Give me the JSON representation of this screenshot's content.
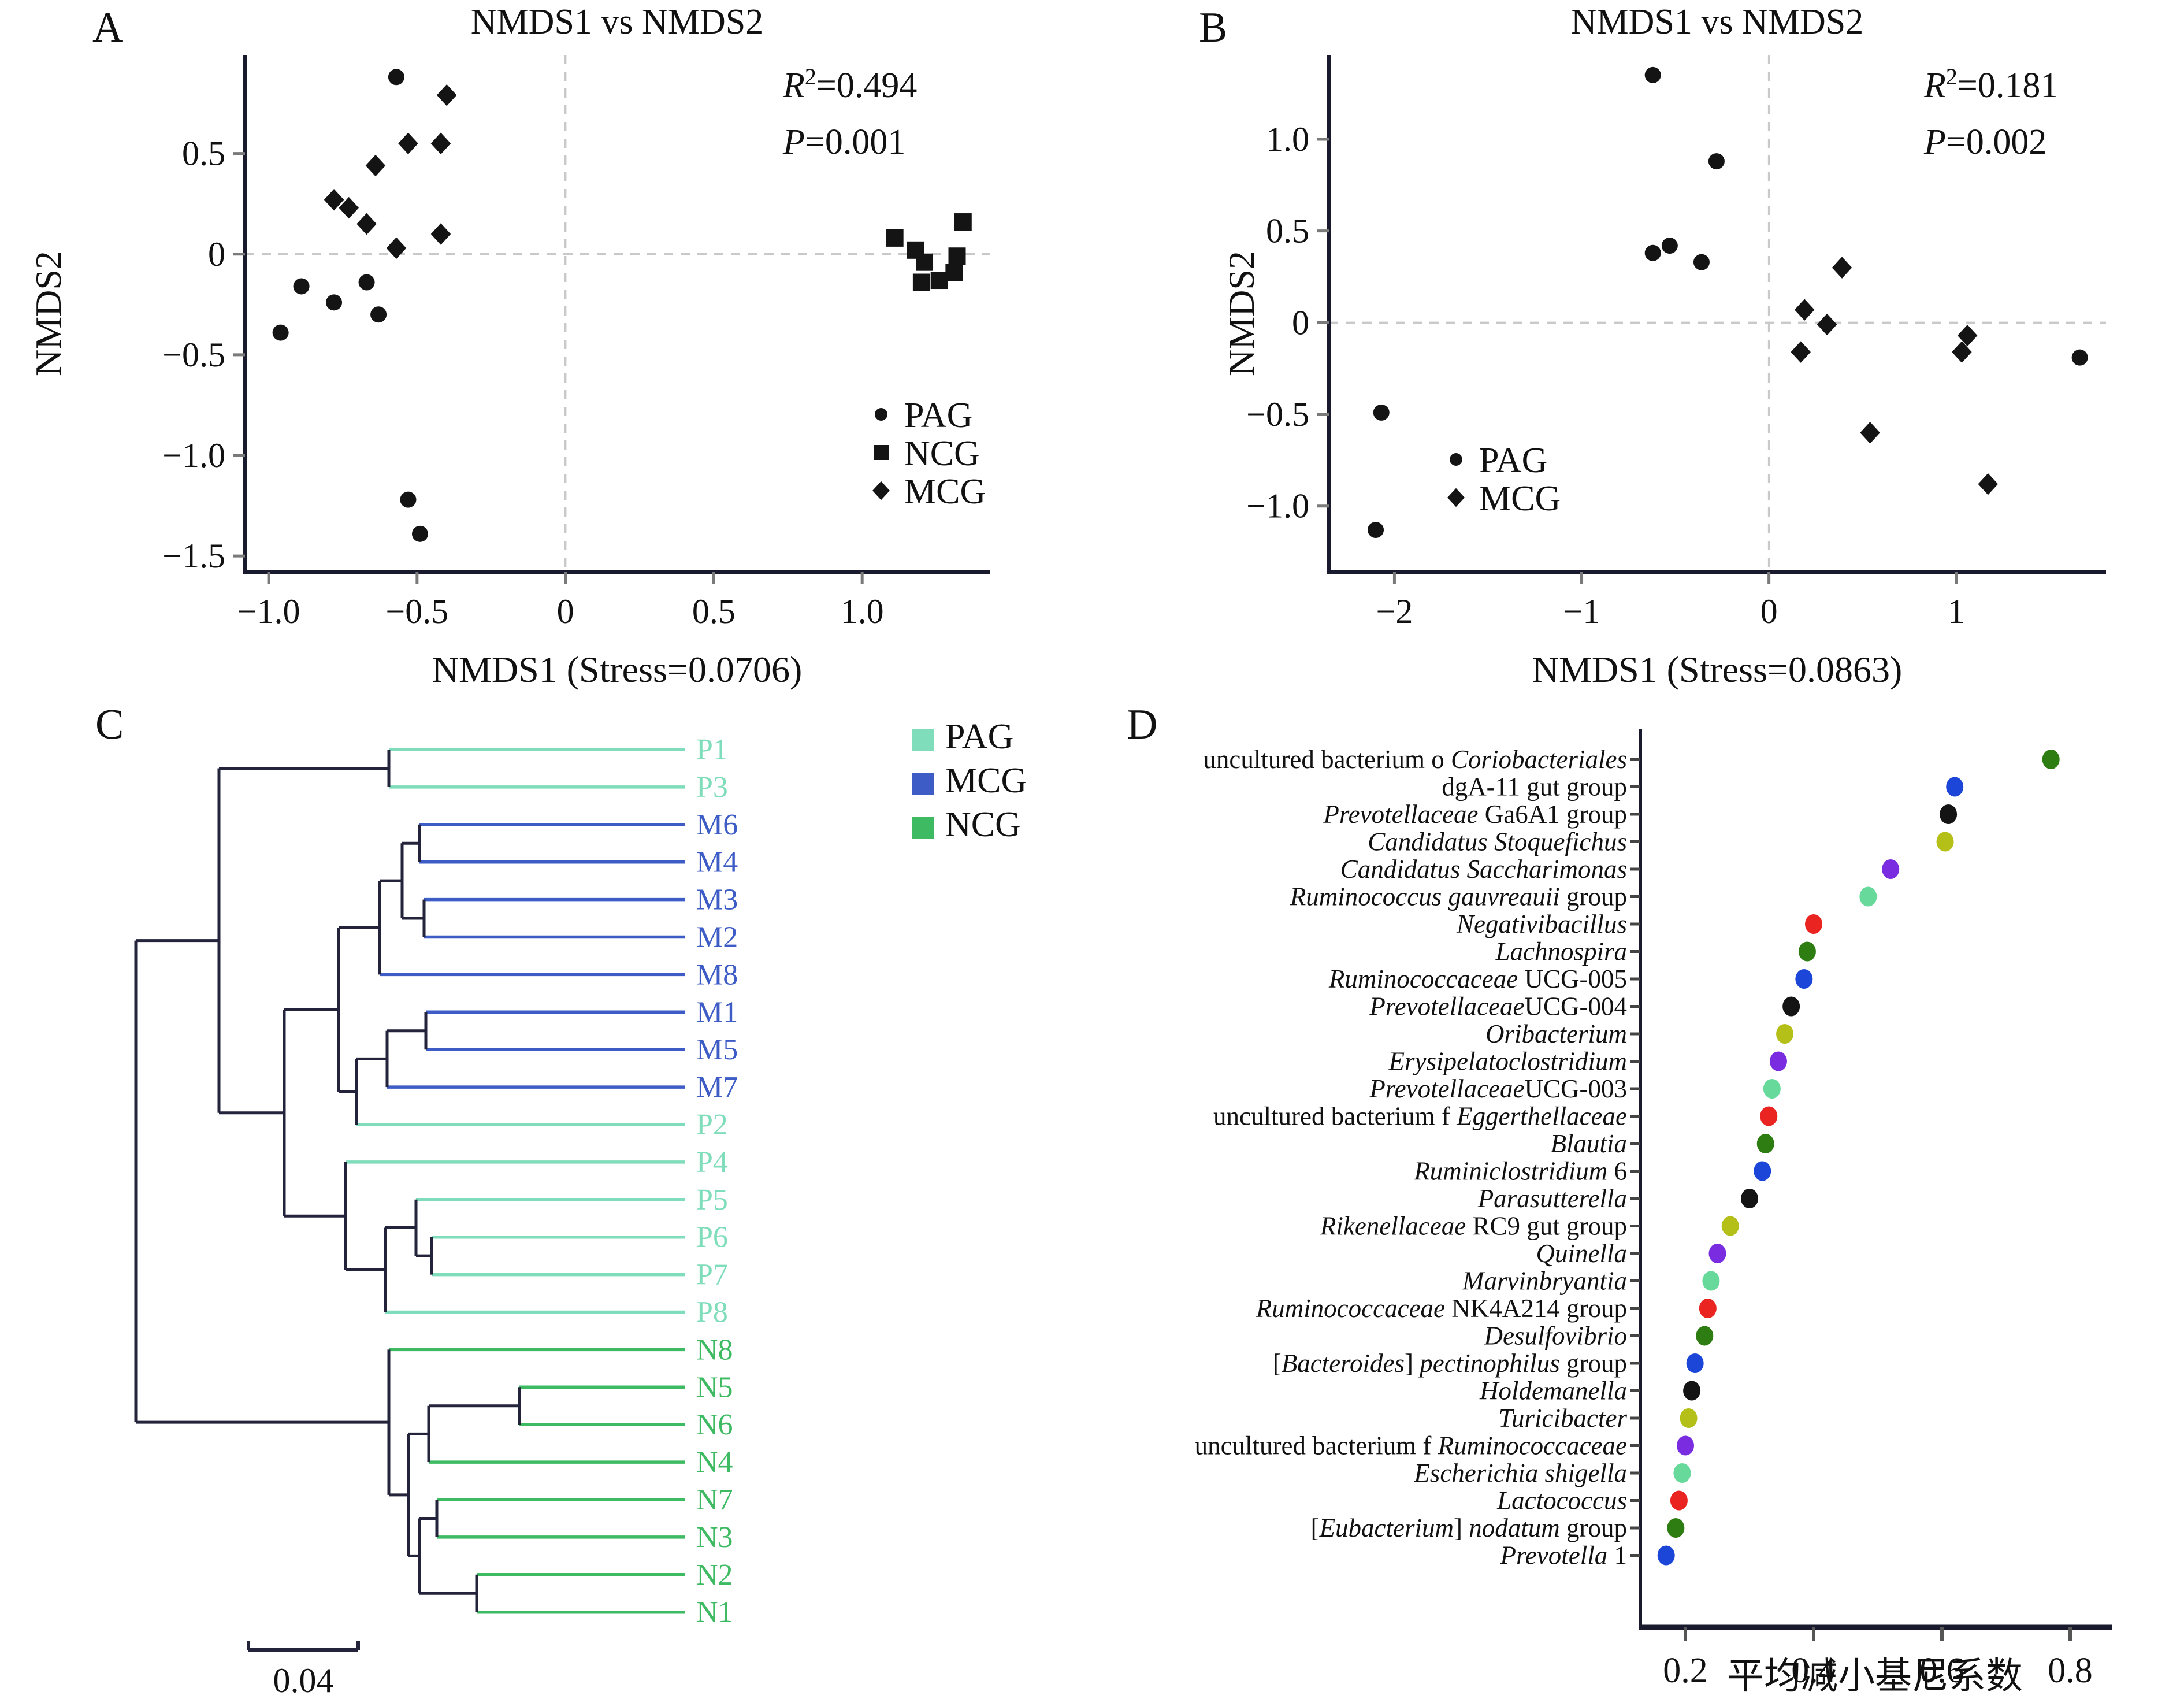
{
  "figure": {
    "background": "#ffffff",
    "panel_letters": {
      "a": "A",
      "b": "B",
      "c": "C",
      "d": "D"
    }
  },
  "colors": {
    "axis": "#1a1a2e",
    "grid_dash": "#c9c9c9",
    "point_black": "#141414",
    "link": "#23233c",
    "pag": "#80ddbb",
    "mcg": "#3d5cc5",
    "ncg": "#3eba63",
    "palette7": [
      "#2e7d12",
      "#1c46d8",
      "#141414",
      "#b4bf17",
      "#7a2ce0",
      "#67d99b",
      "#e92421"
    ]
  },
  "chart_data": [
    {
      "id": "A",
      "type": "scatter",
      "title": "NMDS1 vs NMDS2",
      "xlabel": "NMDS1 (Stress=0.0706)",
      "ylabel": "NMDS2",
      "xlim": [
        -1.08,
        1.43
      ],
      "ylim": [
        -1.58,
        0.99
      ],
      "xticks": [
        -1.0,
        -0.5,
        0,
        0.5,
        1.0
      ],
      "xtick_labels": [
        "−1.0",
        "−0.5",
        "0",
        "0.5",
        "1.0"
      ],
      "yticks": [
        0.5,
        0,
        -0.5,
        -1.0,
        -1.5
      ],
      "ytick_labels": [
        "0.5",
        "0",
        "−0.5",
        "−1.0",
        "−1.5"
      ],
      "grid_zero": true,
      "stats": {
        "r_label": "R",
        "r_sup": "2",
        "r_eq": "=0.494",
        "p_label": "P",
        "p_eq": "=0.001"
      },
      "legend": [
        {
          "label": "PAG",
          "marker": "circle"
        },
        {
          "label": "NCG",
          "marker": "square"
        },
        {
          "label": "MCG",
          "marker": "diamond"
        }
      ],
      "series": [
        {
          "name": "PAG",
          "marker": "circle",
          "points": [
            [
              -0.57,
              0.88
            ],
            [
              -0.89,
              -0.16
            ],
            [
              -0.78,
              -0.24
            ],
            [
              -0.67,
              -0.14
            ],
            [
              -0.63,
              -0.3
            ],
            [
              -0.96,
              -0.39
            ],
            [
              -0.53,
              -1.22
            ],
            [
              -0.49,
              -1.39
            ]
          ]
        },
        {
          "name": "NCG",
          "marker": "square",
          "points": [
            [
              1.11,
              0.08
            ],
            [
              1.18,
              0.02
            ],
            [
              1.21,
              -0.04
            ],
            [
              1.2,
              -0.14
            ],
            [
              1.26,
              -0.13
            ],
            [
              1.31,
              -0.09
            ],
            [
              1.32,
              -0.01
            ],
            [
              1.34,
              0.16
            ]
          ]
        },
        {
          "name": "MCG",
          "marker": "diamond",
          "points": [
            [
              -0.4,
              0.79
            ],
            [
              -0.53,
              0.55
            ],
            [
              -0.42,
              0.55
            ],
            [
              -0.64,
              0.44
            ],
            [
              -0.78,
              0.27
            ],
            [
              -0.73,
              0.23
            ],
            [
              -0.67,
              0.15
            ],
            [
              -0.42,
              0.1
            ],
            [
              -0.57,
              0.03
            ]
          ]
        }
      ]
    },
    {
      "id": "B",
      "type": "scatter",
      "title": "NMDS1 vs NMDS2",
      "xlabel": "NMDS1 (Stress=0.0863)",
      "ylabel": "NMDS2",
      "xlim": [
        -2.35,
        1.8
      ],
      "ylim": [
        -1.36,
        1.46
      ],
      "xticks": [
        -2,
        -1,
        0,
        1
      ],
      "xtick_labels": [
        "−2",
        "−1",
        "0",
        "1"
      ],
      "yticks": [
        1.0,
        0.5,
        0,
        -0.5,
        -1.0
      ],
      "ytick_labels": [
        "1.0",
        "0.5",
        "0",
        "−0.5",
        "−1.0"
      ],
      "grid_zero": true,
      "stats": {
        "r_label": "R",
        "r_sup": "2",
        "r_eq": "=0.181",
        "p_label": "P",
        "p_eq": "=0.002"
      },
      "legend": [
        {
          "label": "PAG",
          "marker": "circle"
        },
        {
          "label": "MCG",
          "marker": "diamond"
        }
      ],
      "series": [
        {
          "name": "PAG",
          "marker": "circle",
          "points": [
            [
              -0.62,
              1.35
            ],
            [
              -0.28,
              0.88
            ],
            [
              -0.62,
              0.38
            ],
            [
              -0.53,
              0.42
            ],
            [
              -0.36,
              0.33
            ],
            [
              -2.07,
              -0.49
            ],
            [
              -2.1,
              -1.13
            ],
            [
              1.66,
              -0.19
            ]
          ]
        },
        {
          "name": "MCG",
          "marker": "diamond",
          "points": [
            [
              0.39,
              0.3
            ],
            [
              0.19,
              0.07
            ],
            [
              0.31,
              -0.01
            ],
            [
              0.17,
              -0.16
            ],
            [
              1.06,
              -0.07
            ],
            [
              1.03,
              -0.16
            ],
            [
              0.54,
              -0.6
            ],
            [
              1.17,
              -0.88
            ]
          ]
        }
      ]
    },
    {
      "id": "C",
      "type": "dendrogram",
      "legend": [
        {
          "label": "PAG",
          "group": "pag"
        },
        {
          "label": "MCG",
          "group": "mcg"
        },
        {
          "label": "NCG",
          "group": "ncg"
        }
      ],
      "scale_bar_label": "0.04",
      "leaf_order": [
        "P1",
        "P3",
        "M6",
        "M4",
        "M3",
        "M2",
        "M8",
        "M1",
        "M5",
        "M7",
        "P2",
        "P4",
        "P5",
        "P6",
        "P7",
        "P8",
        "N8",
        "N5",
        "N6",
        "N4",
        "N7",
        "N3",
        "N2",
        "N1"
      ],
      "leaf_groups": {
        "P": "pag",
        "M": "mcg",
        "N": "ncg"
      },
      "tree": {
        "x": 235,
        "children": [
          {
            "x": 379,
            "children": [
              {
                "x": 673,
                "children": [
                  {
                    "leaf": "P1"
                  },
                  {
                    "leaf": "P3"
                  }
                ]
              },
              {
                "x": 492,
                "children": [
                  {
                    "x": 586,
                    "children": [
                      {
                        "x": 657,
                        "children": [
                          {
                            "x": 696,
                            "children": [
                              {
                                "x": 726,
                                "children": [
                                  {
                                    "leaf": "M6"
                                  },
                                  {
                                    "leaf": "M4"
                                  }
                                ]
                              },
                              {
                                "x": 734,
                                "children": [
                                  {
                                    "leaf": "M3"
                                  },
                                  {
                                    "leaf": "M2"
                                  }
                                ]
                              }
                            ]
                          },
                          {
                            "leaf": "M8"
                          }
                        ]
                      },
                      {
                        "x": 617,
                        "children": [
                          {
                            "x": 670,
                            "children": [
                              {
                                "x": 737,
                                "children": [
                                  {
                                    "leaf": "M1"
                                  },
                                  {
                                    "leaf": "M5"
                                  }
                                ]
                              },
                              {
                                "leaf": "M7"
                              }
                            ]
                          },
                          {
                            "leaf": "P2"
                          }
                        ]
                      }
                    ]
                  },
                  {
                    "x": 598,
                    "children": [
                      {
                        "leaf": "P4"
                      },
                      {
                        "x": 667,
                        "children": [
                          {
                            "x": 720,
                            "children": [
                              {
                                "leaf": "P5"
                              },
                              {
                                "x": 747,
                                "children": [
                                  {
                                    "leaf": "P6"
                                  },
                                  {
                                    "leaf": "P7"
                                  }
                                ]
                              }
                            ]
                          },
                          {
                            "leaf": "P8"
                          }
                        ]
                      }
                    ]
                  }
                ]
              }
            ]
          },
          {
            "x": 673,
            "children": [
              {
                "leaf": "N8"
              },
              {
                "x": 707,
                "children": [
                  {
                    "x": 742,
                    "children": [
                      {
                        "x": 899,
                        "children": [
                          {
                            "leaf": "N5"
                          },
                          {
                            "leaf": "N6"
                          }
                        ]
                      },
                      {
                        "leaf": "N4"
                      }
                    ]
                  },
                  {
                    "x": 726,
                    "children": [
                      {
                        "x": 756,
                        "children": [
                          {
                            "leaf": "N7"
                          },
                          {
                            "leaf": "N3"
                          }
                        ]
                      },
                      {
                        "x": 825,
                        "children": [
                          {
                            "leaf": "N2"
                          },
                          {
                            "leaf": "N1"
                          }
                        ]
                      }
                    ]
                  }
                ]
              }
            ]
          }
        ]
      }
    },
    {
      "id": "D",
      "type": "dot",
      "xlabel": "平均减小基尼系数",
      "xticks": [
        0.2,
        0.4,
        0.6,
        0.8
      ],
      "xtick_labels": [
        "0.2",
        "0.4",
        "0.6",
        "0.8"
      ],
      "rows": [
        {
          "segs": [
            [
              "uncultured bacterium o ",
              0
            ],
            [
              "Coriobacteriales",
              1
            ]
          ],
          "value": 0.77
        },
        {
          "segs": [
            [
              "dgA-11 gut group",
              0
            ]
          ],
          "value": 0.62
        },
        {
          "segs": [
            [
              "Prevotellaceae",
              1
            ],
            [
              " Ga6A1 group",
              0
            ]
          ],
          "value": 0.61
        },
        {
          "segs": [
            [
              "Candidatus Stoquefichus",
              1
            ]
          ],
          "value": 0.605
        },
        {
          "segs": [
            [
              "Candidatus Saccharimonas",
              1
            ]
          ],
          "value": 0.52
        },
        {
          "segs": [
            [
              "Ruminococcus gauvreauii",
              1
            ],
            [
              " group",
              0
            ]
          ],
          "value": 0.485
        },
        {
          "segs": [
            [
              "Negativibacillus",
              1
            ]
          ],
          "value": 0.4
        },
        {
          "segs": [
            [
              "Lachnospira",
              1
            ]
          ],
          "value": 0.39
        },
        {
          "segs": [
            [
              "Ruminococcaceae",
              1
            ],
            [
              " UCG-005",
              0
            ]
          ],
          "value": 0.385
        },
        {
          "segs": [
            [
              "Prevotellaceae",
              1
            ],
            [
              "UCG-004",
              0
            ]
          ],
          "value": 0.365
        },
        {
          "segs": [
            [
              "Oribacterium",
              1
            ]
          ],
          "value": 0.355
        },
        {
          "segs": [
            [
              "Erysipelatoclostridium",
              1
            ]
          ],
          "value": 0.345
        },
        {
          "segs": [
            [
              "Prevotellaceae",
              1
            ],
            [
              "UCG-003",
              0
            ]
          ],
          "value": 0.335
        },
        {
          "segs": [
            [
              "uncultured bacterium f ",
              0
            ],
            [
              "Eggerthellaceae",
              1
            ]
          ],
          "value": 0.33
        },
        {
          "segs": [
            [
              "Blautia",
              1
            ]
          ],
          "value": 0.325
        },
        {
          "segs": [
            [
              "Ruminiclostridium",
              1
            ],
            [
              " 6",
              0
            ]
          ],
          "value": 0.32
        },
        {
          "segs": [
            [
              "Parasutterella",
              1
            ]
          ],
          "value": 0.3
        },
        {
          "segs": [
            [
              "Rikenellaceae",
              1
            ],
            [
              " RC9 gut group",
              0
            ]
          ],
          "value": 0.27
        },
        {
          "segs": [
            [
              "Quinella",
              1
            ]
          ],
          "value": 0.25
        },
        {
          "segs": [
            [
              "Marvinbryantia",
              1
            ]
          ],
          "value": 0.24
        },
        {
          "segs": [
            [
              "Ruminococcaceae",
              1
            ],
            [
              " NK4A214 group",
              0
            ]
          ],
          "value": 0.235
        },
        {
          "segs": [
            [
              "Desulfovibrio",
              1
            ]
          ],
          "value": 0.23
        },
        {
          "segs": [
            [
              "[",
              0
            ],
            [
              "Bacteroides",
              1
            ],
            [
              "] ",
              0
            ],
            [
              "pectinophilus",
              1
            ],
            [
              " group",
              0
            ]
          ],
          "value": 0.215
        },
        {
          "segs": [
            [
              "Holdemanella",
              1
            ]
          ],
          "value": 0.21
        },
        {
          "segs": [
            [
              "Turicibacter",
              1
            ]
          ],
          "value": 0.205
        },
        {
          "segs": [
            [
              "uncultured bacterium f ",
              0
            ],
            [
              "Ruminococcaceae",
              1
            ]
          ],
          "value": 0.2
        },
        {
          "segs": [
            [
              "Escherichia shigella",
              1
            ]
          ],
          "value": 0.195
        },
        {
          "segs": [
            [
              "Lactococcus",
              1
            ]
          ],
          "value": 0.19
        },
        {
          "segs": [
            [
              "[",
              0
            ],
            [
              "Eubacterium",
              1
            ],
            [
              "] ",
              0
            ],
            [
              "nodatum",
              1
            ],
            [
              " group",
              0
            ]
          ],
          "value": 0.185
        },
        {
          "segs": [
            [
              "Prevotella",
              1
            ],
            [
              " 1",
              0
            ]
          ],
          "value": 0.17
        }
      ]
    }
  ]
}
